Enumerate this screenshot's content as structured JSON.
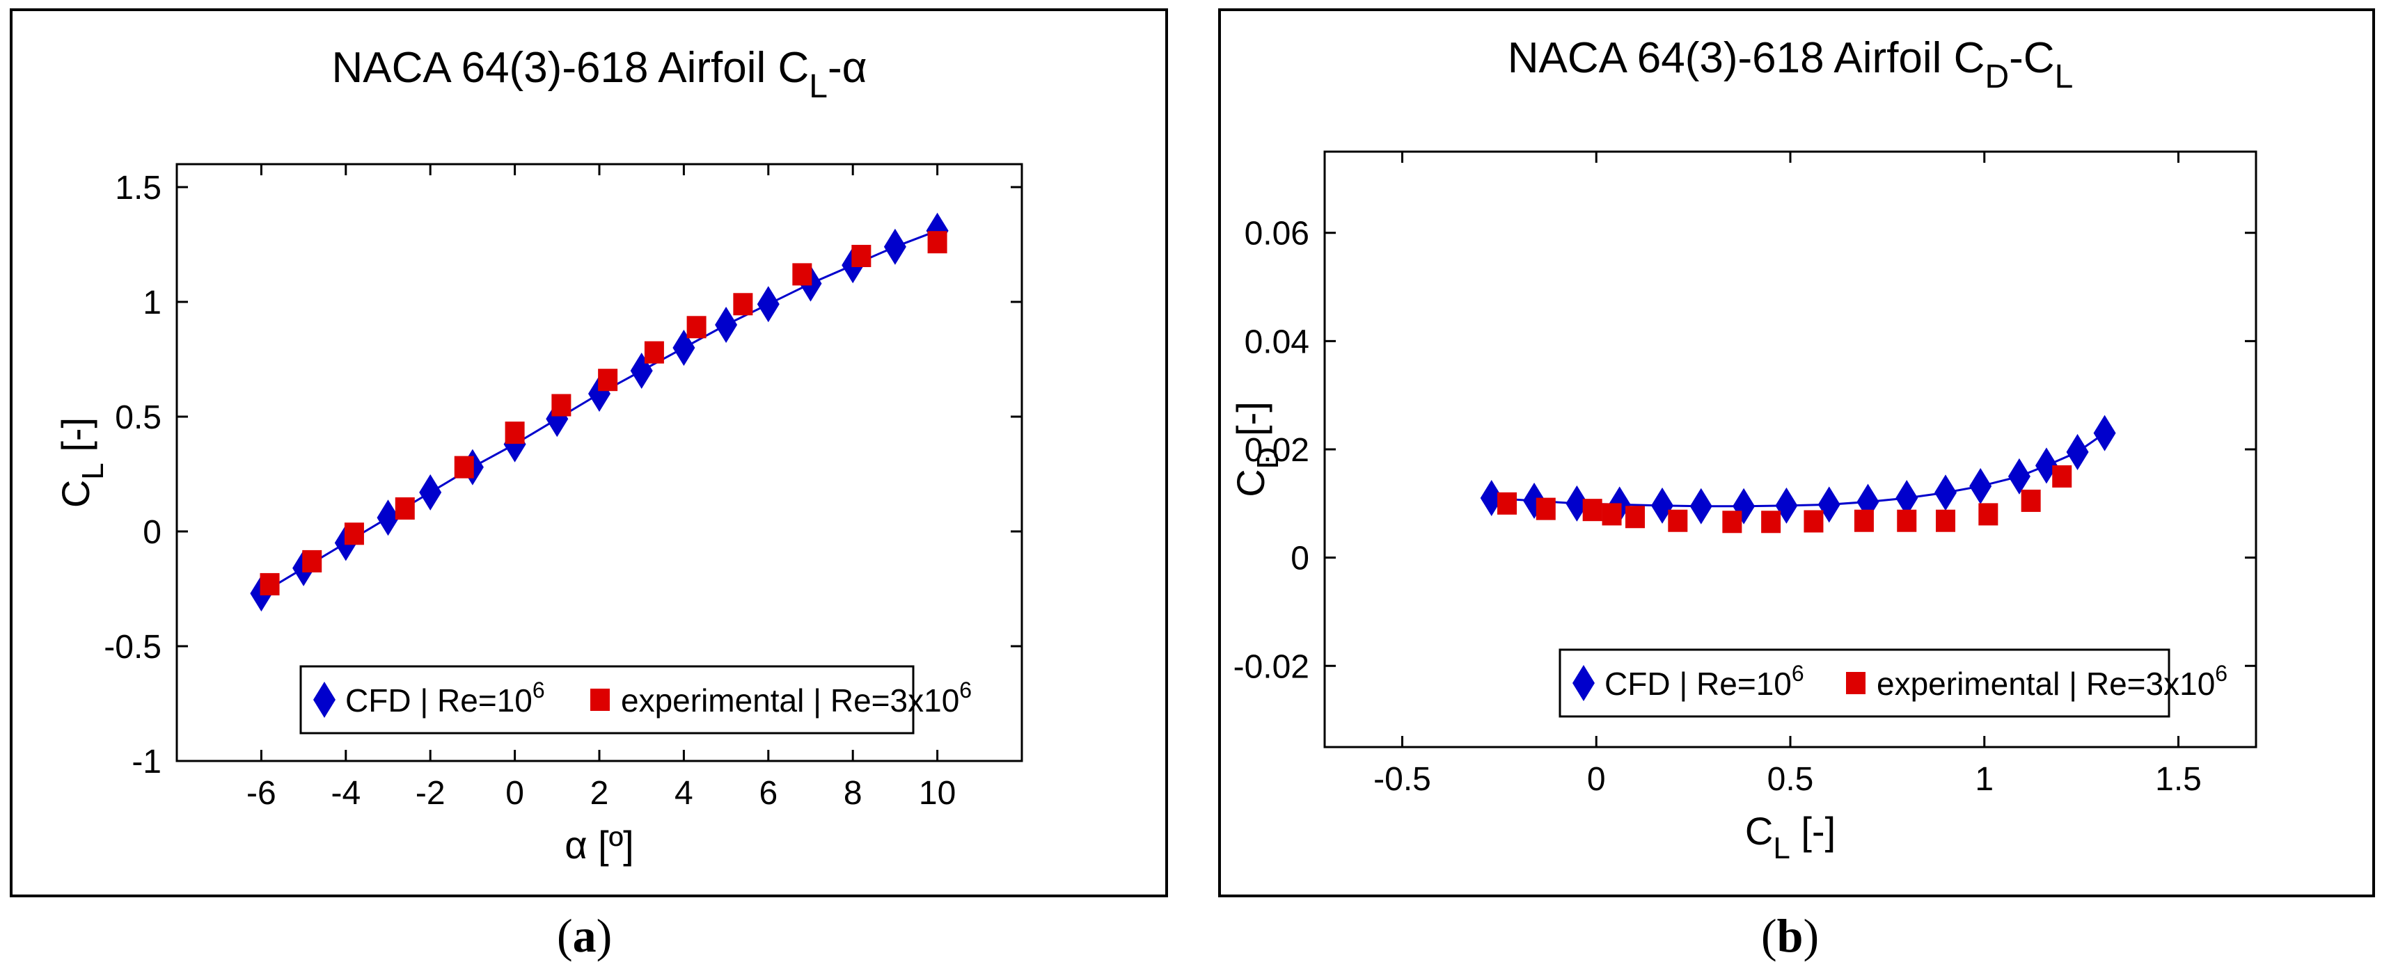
{
  "chart_data": [
    {
      "type": "line",
      "title": "NACA 64(3)-618 Airfoil C",
      "title_sub": "L",
      "title_suffix": "-α",
      "xlabel": "α [º]",
      "ylabel": "C",
      "ylabel_sub": "L",
      "ylabel_suffix": " [-]",
      "xlim": [
        -8,
        12
      ],
      "ylim": [
        -1,
        1.6
      ],
      "xticks": [
        -6,
        -4,
        -2,
        0,
        2,
        4,
        6,
        8,
        10
      ],
      "yticks": [
        -1,
        -0.5,
        0,
        0.5,
        1,
        1.5
      ],
      "xtick_labels": [
        "-6",
        "-4",
        "-2",
        "0",
        "2",
        "4",
        "6",
        "8",
        "10"
      ],
      "ytick_labels": [
        "-1",
        "-0.5",
        "0",
        "0.5",
        "1",
        "1.5"
      ],
      "legend_position": "bottom-center",
      "series": [
        {
          "name": "CFD | Re=10",
          "sup": "6",
          "marker": "diamond",
          "color": "#0000cc",
          "line": true,
          "x": [
            -6,
            -5,
            -4,
            -3,
            -2,
            -1,
            0,
            1,
            2,
            3,
            4,
            5,
            6,
            7,
            8,
            9,
            10
          ],
          "y": [
            -0.27,
            -0.16,
            -0.05,
            0.06,
            0.17,
            0.28,
            0.38,
            0.49,
            0.6,
            0.7,
            0.8,
            0.9,
            0.99,
            1.08,
            1.16,
            1.24,
            1.31
          ]
        },
        {
          "name": "experimental | Re=3x10",
          "sup": "6",
          "marker": "square",
          "color": "#dd0000",
          "line": false,
          "x": [
            -5.8,
            -4.8,
            -3.8,
            -2.6,
            -1.2,
            0,
            1.1,
            2.2,
            3.3,
            4.3,
            5.4,
            6.8,
            8.2,
            10
          ],
          "y": [
            -0.23,
            -0.13,
            -0.01,
            0.1,
            0.28,
            0.43,
            0.55,
            0.66,
            0.78,
            0.89,
            0.99,
            1.12,
            1.2,
            1.26
          ]
        }
      ]
    },
    {
      "type": "line",
      "title": "NACA 64(3)-618 Airfoil C",
      "title_sub": "D",
      "title_mid": "-C",
      "title_sub2": "L",
      "xlabel": "C",
      "xlabel_sub": "L",
      "xlabel_suffix": " [-]",
      "ylabel": "C",
      "ylabel_sub": "D",
      "ylabel_suffix": " [-]",
      "xlim": [
        -0.7,
        1.7
      ],
      "ylim": [
        -0.035,
        0.075
      ],
      "xticks": [
        -0.5,
        0,
        0.5,
        1,
        1.5
      ],
      "yticks": [
        -0.02,
        0,
        0.02,
        0.04,
        0.06
      ],
      "xtick_labels": [
        "-0.5",
        "0",
        "0.5",
        "1",
        "1.5"
      ],
      "ytick_labels": [
        "-0.02",
        "0",
        "0.02",
        "0.04",
        "0.06"
      ],
      "legend_position": "bottom-center",
      "series": [
        {
          "name": "CFD | Re=10",
          "sup": "6",
          "marker": "diamond",
          "color": "#0000cc",
          "line": true,
          "x": [
            -0.27,
            -0.16,
            -0.05,
            0.06,
            0.17,
            0.27,
            0.38,
            0.49,
            0.6,
            0.7,
            0.8,
            0.9,
            0.99,
            1.09,
            1.16,
            1.24,
            1.31
          ],
          "y": [
            0.011,
            0.0105,
            0.01,
            0.0098,
            0.0096,
            0.0095,
            0.0095,
            0.0096,
            0.0098,
            0.0103,
            0.011,
            0.012,
            0.0132,
            0.015,
            0.017,
            0.0195,
            0.023
          ]
        },
        {
          "name": "experimental | Re=3x10",
          "sup": "6",
          "marker": "square",
          "color": "#dd0000",
          "line": false,
          "x": [
            -0.23,
            -0.13,
            -0.01,
            0.04,
            0.1,
            0.21,
            0.35,
            0.45,
            0.56,
            0.69,
            0.8,
            0.9,
            1.01,
            1.12,
            1.2
          ],
          "y": [
            0.01,
            0.009,
            0.0088,
            0.008,
            0.0075,
            0.0068,
            0.0066,
            0.0066,
            0.0067,
            0.0068,
            0.0068,
            0.0068,
            0.008,
            0.0105,
            0.015
          ]
        }
      ]
    }
  ],
  "captions": {
    "a": "a",
    "b": "b"
  }
}
